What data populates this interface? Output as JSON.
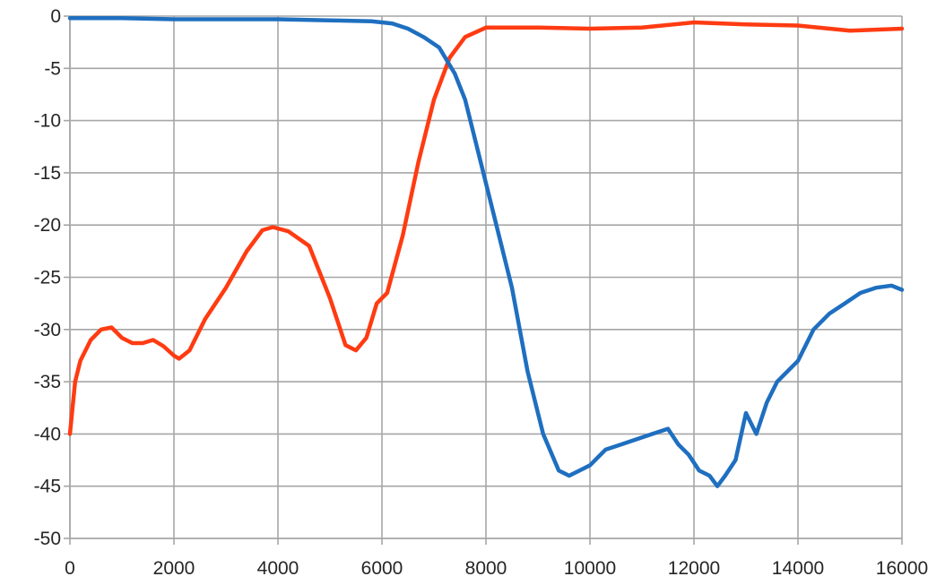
{
  "chart_data": {
    "type": "line",
    "title": "",
    "xlabel": "",
    "ylabel": "",
    "xlim": [
      0,
      16000
    ],
    "ylim": [
      -50,
      0
    ],
    "xticks": [
      0,
      2000,
      4000,
      6000,
      8000,
      10000,
      12000,
      14000,
      16000
    ],
    "yticks": [
      0,
      -5,
      -10,
      -15,
      -20,
      -25,
      -30,
      -35,
      -40,
      -45,
      -50
    ],
    "grid": true,
    "legend": "none",
    "series": [
      {
        "color": "#ff3b12",
        "x": [
          0,
          100,
          200,
          400,
          600,
          800,
          1000,
          1200,
          1400,
          1600,
          1800,
          2000,
          2100,
          2300,
          2600,
          3000,
          3400,
          3700,
          3900,
          4200,
          4600,
          5000,
          5300,
          5500,
          5700,
          5900,
          6100,
          6400,
          6700,
          7000,
          7300,
          7600,
          8000,
          9000,
          10000,
          11000,
          12000,
          13000,
          14000,
          15000,
          16000
        ],
        "y": [
          -40,
          -35,
          -33,
          -31,
          -30,
          -29.8,
          -30.8,
          -31.3,
          -31.3,
          -31,
          -31.6,
          -32.5,
          -32.8,
          -32,
          -29,
          -26,
          -22.5,
          -20.5,
          -20.2,
          -20.6,
          -22,
          -27,
          -31.5,
          -32,
          -30.8,
          -27.5,
          -26.5,
          -21,
          -14,
          -8,
          -4,
          -2,
          -1.1,
          -1.1,
          -1.2,
          -1.1,
          -0.6,
          -0.8,
          -0.9,
          -1.4,
          -1.2
        ]
      },
      {
        "color": "#1f6fc0",
        "x": [
          0,
          1000,
          2000,
          3000,
          4000,
          5000,
          5800,
          6200,
          6500,
          6800,
          7100,
          7400,
          7600,
          7900,
          8200,
          8500,
          8800,
          9100,
          9400,
          9600,
          9800,
          10000,
          10300,
          10600,
          10900,
          11200,
          11500,
          11700,
          11900,
          12100,
          12300,
          12450,
          12600,
          12800,
          13000,
          13200,
          13400,
          13600,
          13800,
          14000,
          14300,
          14600,
          14900,
          15200,
          15500,
          15800,
          16000
        ],
        "y": [
          -0.2,
          -0.2,
          -0.3,
          -0.3,
          -0.3,
          -0.4,
          -0.5,
          -0.7,
          -1.2,
          -2,
          -3,
          -5.5,
          -8,
          -14,
          -20,
          -26,
          -34,
          -40,
          -43.5,
          -44,
          -43.5,
          -43,
          -41.5,
          -41,
          -40.5,
          -40,
          -39.5,
          -41,
          -42,
          -43.5,
          -44,
          -45,
          -44,
          -42.5,
          -38,
          -40,
          -37,
          -35,
          -34,
          -33,
          -30,
          -28.5,
          -27.5,
          -26.5,
          -26,
          -25.8,
          -26.2
        ]
      }
    ]
  }
}
